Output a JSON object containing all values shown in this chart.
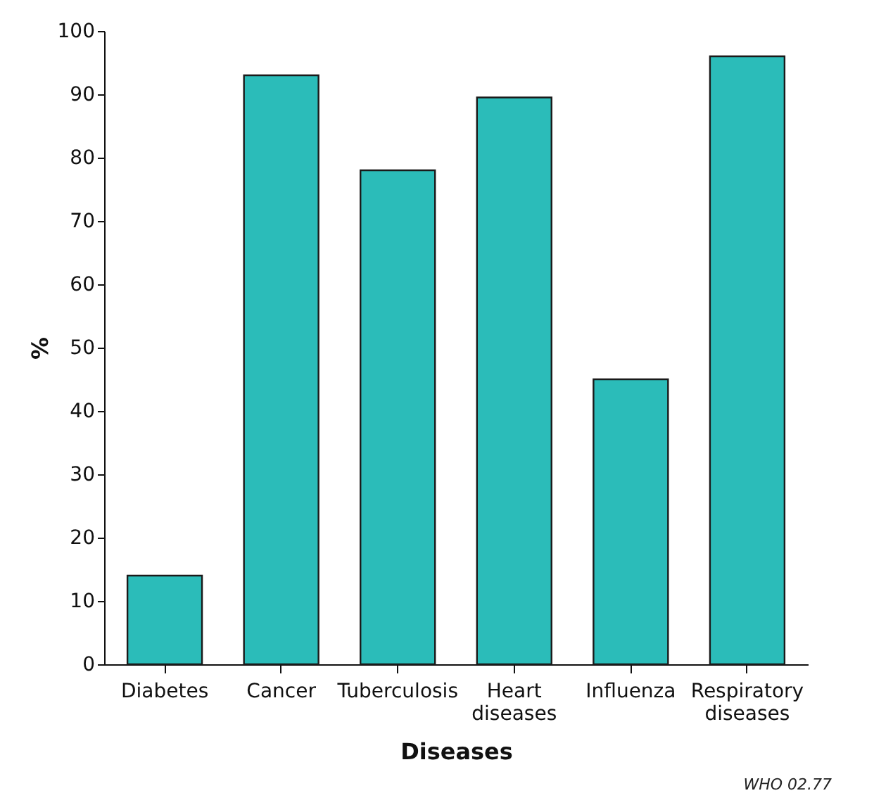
{
  "chart_data": {
    "type": "bar",
    "xlabel": "Diseases",
    "ylabel": "%",
    "categories": [
      "Diabetes",
      "Cancer",
      "Tuberculosis",
      "Heart diseases",
      "Influenza",
      "Respiratory diseases"
    ],
    "values": [
      14,
      93,
      78,
      89.5,
      45,
      96
    ],
    "color": "#2bbcb9",
    "ylim": [
      0,
      100
    ],
    "yticks": [
      0,
      10,
      20,
      30,
      40,
      50,
      60,
      70,
      80,
      90,
      100
    ],
    "grid": false,
    "annotations": [
      "WHO 02.77"
    ]
  }
}
